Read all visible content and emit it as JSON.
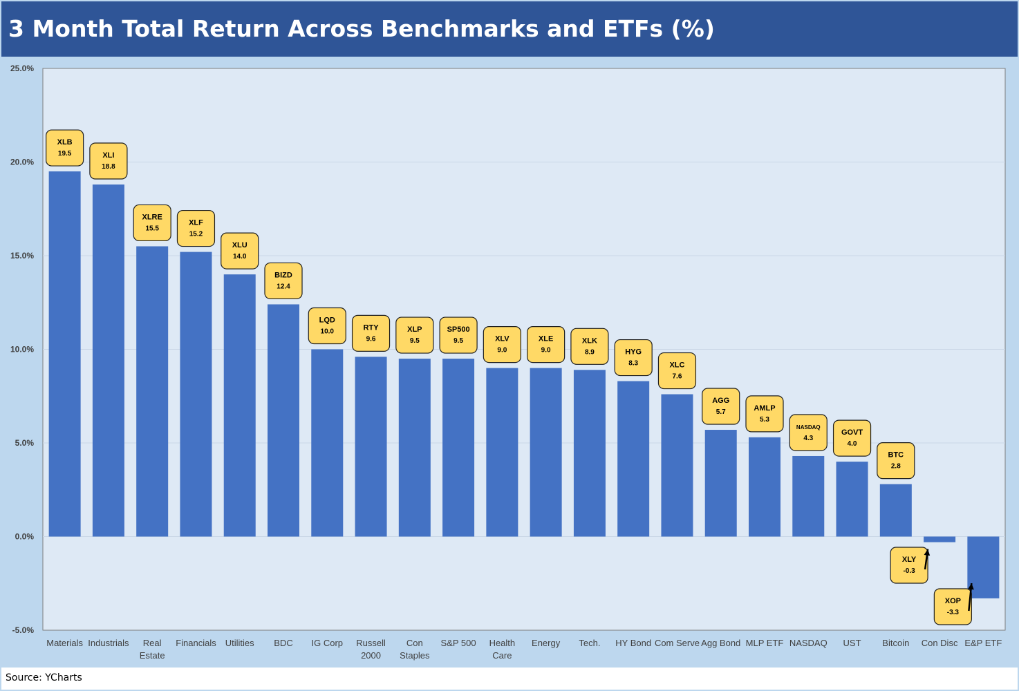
{
  "title": "3 Month Total Return Across Benchmarks and ETFs (%)",
  "source": "Source: YCharts",
  "colors": {
    "bar": "#4472c4",
    "label_fill": "#ffd966",
    "plot_bg": "#dee9f5",
    "frame_bg": "#bdd7ee",
    "title_bg": "#2f5597"
  },
  "chart_data": {
    "type": "bar",
    "ylim": [
      -5,
      25
    ],
    "yticks": [
      "25.0%",
      "20.0%",
      "15.0%",
      "10.0%",
      "5.0%",
      "0.0%",
      "-5.0%"
    ],
    "ytick_values": [
      25,
      20,
      15,
      10,
      5,
      0,
      -5
    ],
    "grid": true,
    "categories": [
      [
        "Materials"
      ],
      [
        "Industrials"
      ],
      [
        "Real",
        "Estate"
      ],
      [
        "Financials"
      ],
      [
        "Utilities"
      ],
      [
        "BDC"
      ],
      [
        "IG Corp"
      ],
      [
        "Russell",
        "2000"
      ],
      [
        "Con",
        "Staples"
      ],
      [
        "S&P 500"
      ],
      [
        "Health",
        "Care"
      ],
      [
        "Energy"
      ],
      [
        "Tech."
      ],
      [
        "HY Bond"
      ],
      [
        "Com Serve"
      ],
      [
        "Agg Bond"
      ],
      [
        "MLP ETF"
      ],
      [
        "NASDAQ"
      ],
      [
        "UST"
      ],
      [
        "Bitcoin"
      ],
      [
        "Con Disc"
      ],
      [
        "E&P ETF"
      ]
    ],
    "values": [
      19.5,
      18.8,
      15.5,
      15.2,
      14.0,
      12.4,
      10.0,
      9.6,
      9.5,
      9.5,
      9.0,
      9.0,
      8.9,
      8.3,
      7.6,
      5.7,
      5.3,
      4.3,
      4.0,
      2.8,
      -0.3,
      -3.3
    ],
    "data_labels": [
      {
        "ticker": "XLB",
        "value": "19.5"
      },
      {
        "ticker": "XLI",
        "value": "18.8"
      },
      {
        "ticker": "XLRE",
        "value": "15.5"
      },
      {
        "ticker": "XLF",
        "value": "15.2"
      },
      {
        "ticker": "XLU",
        "value": "14.0"
      },
      {
        "ticker": "BIZD",
        "value": "12.4"
      },
      {
        "ticker": "LQD",
        "value": "10.0"
      },
      {
        "ticker": "RTY",
        "value": "9.6"
      },
      {
        "ticker": "XLP",
        "value": "9.5"
      },
      {
        "ticker": "SP500",
        "value": "9.5"
      },
      {
        "ticker": "XLV",
        "value": "9.0"
      },
      {
        "ticker": "XLE",
        "value": "9.0"
      },
      {
        "ticker": "XLK",
        "value": "8.9"
      },
      {
        "ticker": "HYG",
        "value": "8.3"
      },
      {
        "ticker": "XLC",
        "value": "7.6"
      },
      {
        "ticker": "AGG",
        "value": "5.7"
      },
      {
        "ticker": "AMLP",
        "value": "5.3"
      },
      {
        "ticker": "NASDAQ",
        "value": "4.3"
      },
      {
        "ticker": "GOVT",
        "value": "4.0"
      },
      {
        "ticker": "BTC",
        "value": "2.8"
      },
      {
        "ticker": "XLY",
        "value": "-0.3"
      },
      {
        "ticker": "XOP",
        "value": "-3.3"
      }
    ]
  }
}
